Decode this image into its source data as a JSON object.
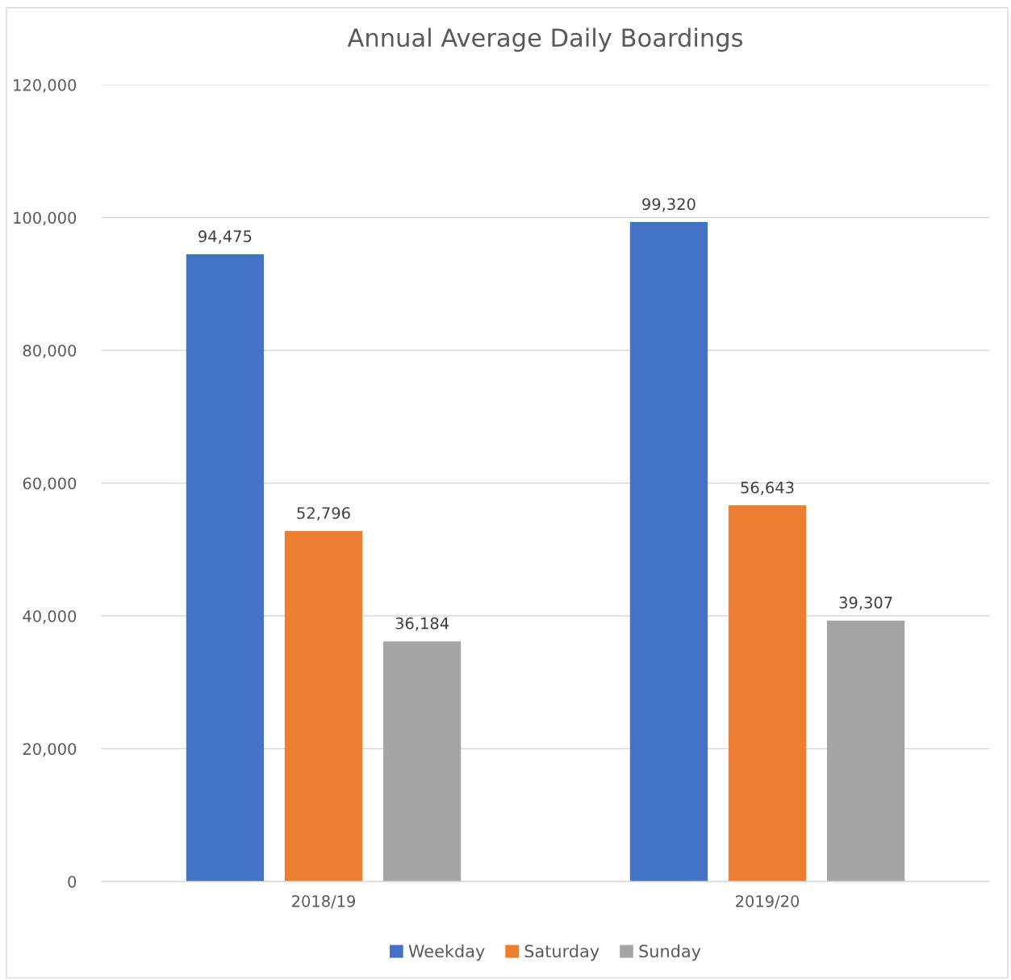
{
  "chart_data": {
    "type": "bar",
    "title": "Annual Average Daily Boardings",
    "categories": [
      "2018/19",
      "2019/20"
    ],
    "series": [
      {
        "name": "Weekday",
        "color": "#4472c4",
        "values": [
          94475,
          99320
        ],
        "value_labels": [
          "94,475",
          "99,320"
        ]
      },
      {
        "name": "Saturday",
        "color": "#ed7d31",
        "values": [
          52796,
          56643
        ],
        "value_labels": [
          "52,796",
          "56,643"
        ]
      },
      {
        "name": "Sunday",
        "color": "#a5a5a5",
        "values": [
          36184,
          39307
        ],
        "value_labels": [
          "36,184",
          "39,307"
        ]
      }
    ],
    "ylim": [
      0,
      120000
    ],
    "yticks": [
      {
        "value": 0,
        "label": "0"
      },
      {
        "value": 20000,
        "label": "20,000"
      },
      {
        "value": 40000,
        "label": "40,000"
      },
      {
        "value": 60000,
        "label": "60,000"
      },
      {
        "value": 80000,
        "label": "80,000"
      },
      {
        "value": 100000,
        "label": "100,000"
      },
      {
        "value": 120000,
        "label": "120,000"
      }
    ],
    "grid": "y",
    "legend": "bottom"
  }
}
